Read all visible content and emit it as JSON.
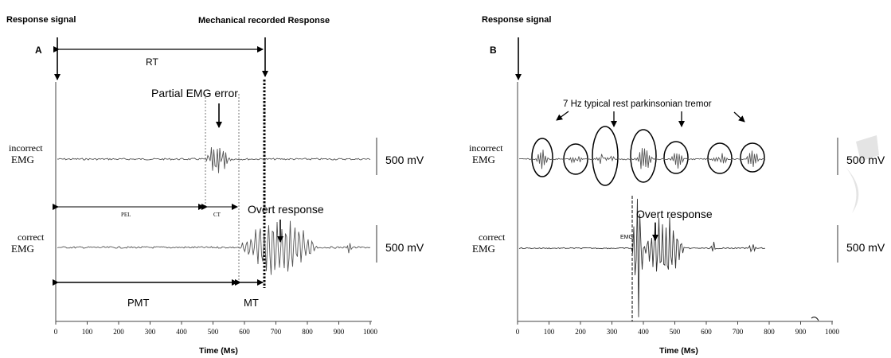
{
  "panel_a": {
    "response_signal": "Response signal",
    "mechanical": "Mechanical recorded Response",
    "letter": "A",
    "rt": "RT",
    "partial_error": "Partial EMG error",
    "incorrect": [
      "incorrect",
      "EMG"
    ],
    "correct": [
      "correct",
      "EMG"
    ],
    "pel": "PEL",
    "ct": "CT",
    "overt": "Overt response",
    "pmt": "PMT",
    "mt": "MT",
    "scale_top": "500 mV",
    "scale_bottom": "500 mV",
    "x_ticks": [
      "0",
      "100",
      "200",
      "300",
      "400",
      "500",
      "600",
      "700",
      "800",
      "900",
      "1000"
    ],
    "xlabel": "Time (Ms)"
  },
  "panel_b": {
    "response_signal": "Response signal",
    "letter": "B",
    "tremor": "7 Hz typical rest parkinsonian tremor",
    "incorrect": [
      "incorrect",
      "EMG"
    ],
    "correct": [
      "correct",
      "EMG"
    ],
    "overt": "Overt response",
    "emg_onset": "EMG",
    "scale_top": "500 mV",
    "scale_bottom": "500 mV",
    "x_ticks": [
      "0",
      "100",
      "200",
      "300",
      "400",
      "500",
      "600",
      "700",
      "800",
      "900",
      "1000"
    ],
    "xlabel": "Time (Ms)"
  },
  "colors": {
    "ink": "#000000",
    "trace": "#555555",
    "watermark": "#e4e4e4"
  }
}
